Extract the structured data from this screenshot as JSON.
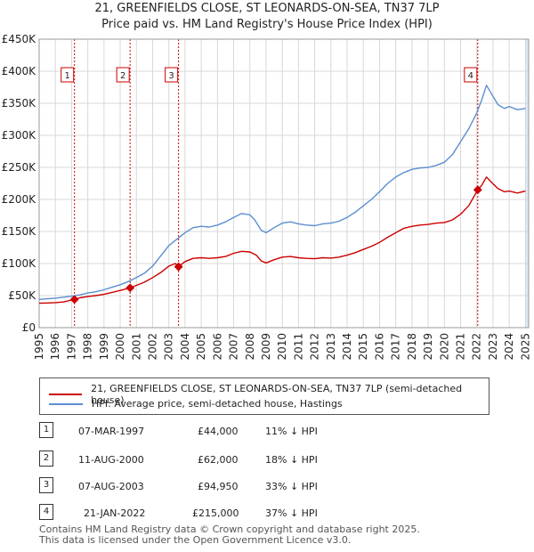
{
  "title_line1": "21, GREENFIELDS CLOSE, ST LEONARDS-ON-SEA, TN37 7LP",
  "title_line2": "Price paid vs. HM Land Registry's House Price Index (HPI)",
  "colors": {
    "property": "#cc0000",
    "hpi": "#5b8fd0",
    "shade": "#dde7f5",
    "grid": "#d8d8d8"
  },
  "chart_data": {
    "type": "line",
    "xlim": [
      1995,
      2025.2
    ],
    "ylim": [
      0,
      450000
    ],
    "y_ticks": [
      {
        "value": 0,
        "label": "£0"
      },
      {
        "value": 50000,
        "label": "£50K"
      },
      {
        "value": 100000,
        "label": "£100K"
      },
      {
        "value": 150000,
        "label": "£150K"
      },
      {
        "value": 200000,
        "label": "£200K"
      },
      {
        "value": 250000,
        "label": "£250K"
      },
      {
        "value": 300000,
        "label": "£300K"
      },
      {
        "value": 350000,
        "label": "£350K"
      },
      {
        "value": 400000,
        "label": "£400K"
      },
      {
        "value": 450000,
        "label": "£450K"
      }
    ],
    "x_ticks": [
      1995,
      1996,
      1997,
      1998,
      1999,
      2000,
      2001,
      2002,
      2003,
      2004,
      2005,
      2006,
      2007,
      2008,
      2009,
      2010,
      2011,
      2012,
      2013,
      2014,
      2015,
      2016,
      2017,
      2018,
      2019,
      2020,
      2021,
      2022,
      2023,
      2024,
      2025
    ],
    "shaded_year_span": [
      2025.0,
      2025.2
    ],
    "series": [
      {
        "name": "21, GREENFIELDS CLOSE, ST LEONARDS-ON-SEA, TN37 7LP (semi-detached house)",
        "color_key": "property",
        "points": [
          [
            1995.0,
            38000
          ],
          [
            1995.5,
            38500
          ],
          [
            1996.0,
            39000
          ],
          [
            1996.5,
            40000
          ],
          [
            1997.0,
            43000
          ],
          [
            1997.18,
            44000
          ],
          [
            1997.5,
            46500
          ],
          [
            1998.0,
            48500
          ],
          [
            1998.5,
            50000
          ],
          [
            1999.0,
            52000
          ],
          [
            1999.5,
            55000
          ],
          [
            2000.0,
            58000
          ],
          [
            2000.61,
            62000
          ],
          [
            2001.0,
            66000
          ],
          [
            2001.5,
            71000
          ],
          [
            2002.0,
            78000
          ],
          [
            2002.5,
            86000
          ],
          [
            2003.0,
            96000
          ],
          [
            2003.4,
            100000
          ],
          [
            2003.6,
            94950
          ],
          [
            2004.0,
            103000
          ],
          [
            2004.5,
            108000
          ],
          [
            2005.0,
            109000
          ],
          [
            2005.5,
            108000
          ],
          [
            2006.0,
            109000
          ],
          [
            2006.5,
            111000
          ],
          [
            2007.0,
            116000
          ],
          [
            2007.5,
            119000
          ],
          [
            2008.0,
            118000
          ],
          [
            2008.4,
            113000
          ],
          [
            2008.7,
            104000
          ],
          [
            2009.0,
            101000
          ],
          [
            2009.5,
            106000
          ],
          [
            2010.0,
            110000
          ],
          [
            2010.5,
            111000
          ],
          [
            2011.0,
            109000
          ],
          [
            2011.5,
            108000
          ],
          [
            2012.0,
            107500
          ],
          [
            2012.5,
            109000
          ],
          [
            2013.0,
            108500
          ],
          [
            2013.5,
            110000
          ],
          [
            2014.0,
            113000
          ],
          [
            2014.5,
            117000
          ],
          [
            2015.0,
            122000
          ],
          [
            2015.5,
            127000
          ],
          [
            2016.0,
            133000
          ],
          [
            2016.5,
            141000
          ],
          [
            2017.0,
            148000
          ],
          [
            2017.5,
            155000
          ],
          [
            2018.0,
            158000
          ],
          [
            2018.5,
            160000
          ],
          [
            2019.0,
            161000
          ],
          [
            2019.5,
            163000
          ],
          [
            2020.0,
            164000
          ],
          [
            2020.5,
            168000
          ],
          [
            2021.0,
            177000
          ],
          [
            2021.5,
            190000
          ],
          [
            2022.06,
            215000
          ],
          [
            2022.3,
            222000
          ],
          [
            2022.6,
            235000
          ],
          [
            2022.9,
            227000
          ],
          [
            2023.3,
            217000
          ],
          [
            2023.7,
            212000
          ],
          [
            2024.0,
            213000
          ],
          [
            2024.5,
            210000
          ],
          [
            2025.0,
            213000
          ]
        ]
      },
      {
        "name": "HPI: Average price, semi-detached house, Hastings",
        "color_key": "hpi",
        "points": [
          [
            1995.0,
            44000
          ],
          [
            1995.5,
            45000
          ],
          [
            1996.0,
            46000
          ],
          [
            1996.5,
            47500
          ],
          [
            1997.0,
            49000
          ],
          [
            1997.5,
            51000
          ],
          [
            1998.0,
            54000
          ],
          [
            1998.5,
            56000
          ],
          [
            1999.0,
            59000
          ],
          [
            1999.5,
            63000
          ],
          [
            2000.0,
            67000
          ],
          [
            2000.5,
            72000
          ],
          [
            2001.0,
            78000
          ],
          [
            2001.5,
            85000
          ],
          [
            2002.0,
            96000
          ],
          [
            2002.5,
            112000
          ],
          [
            2003.0,
            128000
          ],
          [
            2003.5,
            138000
          ],
          [
            2004.0,
            148000
          ],
          [
            2004.5,
            156000
          ],
          [
            2005.0,
            158000
          ],
          [
            2005.5,
            157000
          ],
          [
            2006.0,
            160000
          ],
          [
            2006.5,
            165000
          ],
          [
            2007.0,
            172000
          ],
          [
            2007.5,
            178000
          ],
          [
            2008.0,
            176000
          ],
          [
            2008.3,
            168000
          ],
          [
            2008.7,
            152000
          ],
          [
            2009.0,
            148000
          ],
          [
            2009.5,
            156000
          ],
          [
            2010.0,
            163000
          ],
          [
            2010.5,
            165000
          ],
          [
            2011.0,
            162000
          ],
          [
            2011.5,
            160000
          ],
          [
            2012.0,
            159000
          ],
          [
            2012.5,
            162000
          ],
          [
            2013.0,
            163000
          ],
          [
            2013.5,
            166000
          ],
          [
            2014.0,
            172000
          ],
          [
            2014.5,
            180000
          ],
          [
            2015.0,
            190000
          ],
          [
            2015.5,
            200000
          ],
          [
            2016.0,
            212000
          ],
          [
            2016.5,
            225000
          ],
          [
            2017.0,
            235000
          ],
          [
            2017.5,
            242000
          ],
          [
            2018.0,
            247000
          ],
          [
            2018.5,
            249000
          ],
          [
            2019.0,
            250000
          ],
          [
            2019.5,
            253000
          ],
          [
            2020.0,
            258000
          ],
          [
            2020.5,
            270000
          ],
          [
            2021.0,
            290000
          ],
          [
            2021.5,
            310000
          ],
          [
            2022.0,
            335000
          ],
          [
            2022.3,
            355000
          ],
          [
            2022.6,
            378000
          ],
          [
            2022.9,
            365000
          ],
          [
            2023.3,
            348000
          ],
          [
            2023.7,
            342000
          ],
          [
            2024.0,
            345000
          ],
          [
            2024.5,
            340000
          ],
          [
            2025.0,
            342000
          ]
        ]
      }
    ],
    "markers": [
      {
        "label": "1",
        "x": 1997.18,
        "y": 44000
      },
      {
        "label": "2",
        "x": 2000.61,
        "y": 62000
      },
      {
        "label": "3",
        "x": 2003.6,
        "y": 94950
      },
      {
        "label": "4",
        "x": 2022.06,
        "y": 215000
      }
    ]
  },
  "legend": {
    "property_label": "21, GREENFIELDS CLOSE, ST LEONARDS-ON-SEA, TN37 7LP (semi-detached house)",
    "hpi_label": "HPI: Average price, semi-detached house, Hastings"
  },
  "sales": [
    {
      "num": "1",
      "date": "07-MAR-1997",
      "price": "£44,000",
      "diff": "11% ↓ HPI"
    },
    {
      "num": "2",
      "date": "11-AUG-2000",
      "price": "£62,000",
      "diff": "18% ↓ HPI"
    },
    {
      "num": "3",
      "date": "07-AUG-2003",
      "price": "£94,950",
      "diff": "33% ↓ HPI"
    },
    {
      "num": "4",
      "date": "21-JAN-2022",
      "price": "£215,000",
      "diff": "37% ↓ HPI"
    }
  ],
  "footer_line1": "Contains HM Land Registry data © Crown copyright and database right 2025.",
  "footer_line2": "This data is licensed under the Open Government Licence v3.0."
}
